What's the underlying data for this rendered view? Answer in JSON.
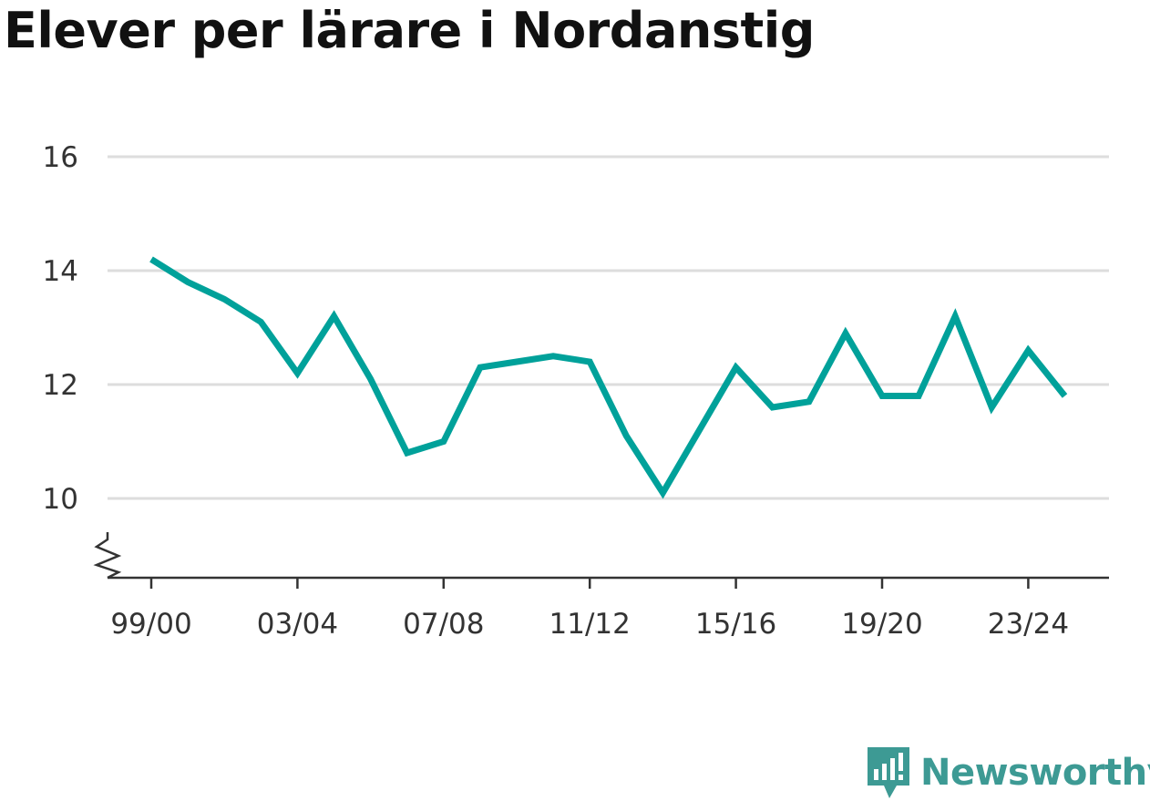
{
  "title": "Elever per lärare i Nordanstig",
  "brand": {
    "name": "Newsworthy",
    "icon": "bar-chart-speech-bubble-icon",
    "color": "#3d9a94"
  },
  "chart_data": {
    "type": "line",
    "title": "Elever per lärare i Nordanstig",
    "xlabel": "",
    "ylabel": "",
    "x": [
      "99/00",
      "00/01",
      "01/02",
      "02/03",
      "03/04",
      "04/05",
      "05/06",
      "06/07",
      "07/08",
      "08/09",
      "09/10",
      "10/11",
      "11/12",
      "12/13",
      "13/14",
      "14/15",
      "15/16",
      "16/17",
      "17/18",
      "18/19",
      "19/20",
      "20/21",
      "21/22",
      "22/23",
      "23/24",
      "24/25"
    ],
    "xtick_labels": [
      "99/00",
      "03/04",
      "07/08",
      "11/12",
      "15/16",
      "19/20",
      "23/24"
    ],
    "yticks": [
      10,
      12,
      14,
      16
    ],
    "ylim": [
      8.6,
      16
    ],
    "axis_break": true,
    "grid": true,
    "series": [
      {
        "color": "#00a19a",
        "values": [
          14.2,
          13.8,
          13.5,
          13.1,
          12.2,
          13.2,
          12.1,
          10.8,
          11.0,
          12.3,
          12.4,
          12.5,
          12.4,
          11.1,
          10.1,
          11.2,
          12.3,
          11.6,
          11.7,
          12.9,
          11.8,
          11.8,
          13.2,
          11.6,
          12.6,
          11.8
        ]
      }
    ]
  }
}
